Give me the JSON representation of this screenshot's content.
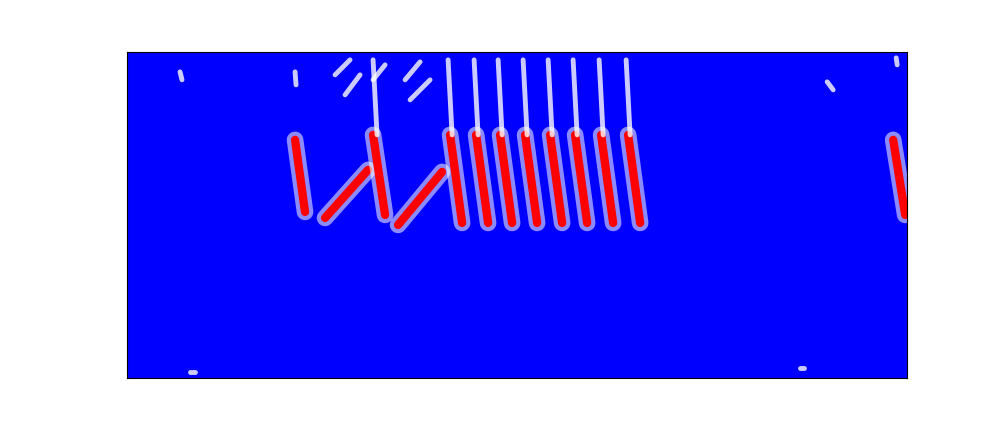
{
  "chart_data": {
    "type": "spectrogram",
    "xlim": [
      0,
      780
    ],
    "ylim": [
      0,
      326
    ],
    "tick_labels": false,
    "clim": [
      0,
      1
    ],
    "background": 0,
    "strokes": [
      {
        "t": [
          168,
          178
        ],
        "f": [
          238,
          166
        ],
        "intensity": 1.0
      },
      {
        "t": [
          198,
          241
        ],
        "f": [
          160,
          208
        ],
        "intensity": 1.0
      },
      {
        "t": [
          246,
          258
        ],
        "f": [
          243,
          163
        ],
        "intensity": 1.0
      },
      {
        "t": [
          271,
          315
        ],
        "f": [
          153,
          206
        ],
        "intensity": 1.0
      },
      {
        "t": [
          323,
          335
        ],
        "f": [
          243,
          155
        ],
        "intensity": 1.0
      },
      {
        "t": [
          349,
          361
        ],
        "f": [
          243,
          155
        ],
        "intensity": 1.0
      },
      {
        "t": [
          373,
          385
        ],
        "f": [
          243,
          155
        ],
        "intensity": 1.0
      },
      {
        "t": [
          398,
          410
        ],
        "f": [
          243,
          155
        ],
        "intensity": 1.0
      },
      {
        "t": [
          423,
          435
        ],
        "f": [
          243,
          155
        ],
        "intensity": 1.0
      },
      {
        "t": [
          448,
          460
        ],
        "f": [
          243,
          155
        ],
        "intensity": 1.0
      },
      {
        "t": [
          474,
          486
        ],
        "f": [
          243,
          155
        ],
        "intensity": 1.0
      },
      {
        "t": [
          501,
          513
        ],
        "f": [
          243,
          155
        ],
        "intensity": 1.0
      },
      {
        "t": [
          766,
          778
        ],
        "f": [
          238,
          163
        ],
        "intensity": 1.0
      },
      {
        "t": [
          246,
          250
        ],
        "f": [
          318,
          243
        ],
        "intensity": 0.6
      },
      {
        "t": [
          321,
          325
        ],
        "f": [
          318,
          243
        ],
        "intensity": 0.6
      },
      {
        "t": [
          347,
          351
        ],
        "f": [
          318,
          243
        ],
        "intensity": 0.6
      },
      {
        "t": [
          371,
          375
        ],
        "f": [
          318,
          243
        ],
        "intensity": 0.6
      },
      {
        "t": [
          396,
          400
        ],
        "f": [
          318,
          243
        ],
        "intensity": 0.6
      },
      {
        "t": [
          421,
          425
        ],
        "f": [
          318,
          243
        ],
        "intensity": 0.6
      },
      {
        "t": [
          446,
          450
        ],
        "f": [
          318,
          243
        ],
        "intensity": 0.6
      },
      {
        "t": [
          472,
          476
        ],
        "f": [
          318,
          243
        ],
        "intensity": 0.6
      },
      {
        "t": [
          499,
          503
        ],
        "f": [
          318,
          243
        ],
        "intensity": 0.6
      },
      {
        "t": [
          208,
          223
        ],
        "f": [
          303,
          318
        ],
        "intensity": 0.6
      },
      {
        "t": [
          218,
          233
        ],
        "f": [
          283,
          303
        ],
        "intensity": 0.6
      },
      {
        "t": [
          246,
          258
        ],
        "f": [
          298,
          313
        ],
        "intensity": 0.6
      },
      {
        "t": [
          278,
          293
        ],
        "f": [
          298,
          316
        ],
        "intensity": 0.6
      },
      {
        "t": [
          283,
          303
        ],
        "f": [
          278,
          298
        ],
        "intensity": 0.6
      },
      {
        "t": [
          53,
          55
        ],
        "f": [
          306,
          298
        ],
        "intensity": 0.5
      },
      {
        "t": [
          168,
          169
        ],
        "f": [
          306,
          293
        ],
        "intensity": 0.5
      },
      {
        "t": [
          700,
          706
        ],
        "f": [
          296,
          288
        ],
        "intensity": 0.5
      },
      {
        "t": [
          769,
          770
        ],
        "f": [
          320,
          313
        ],
        "intensity": 0.5
      },
      {
        "t": [
          63,
          68
        ],
        "f": [
          6,
          6
        ],
        "intensity": 0.5
      },
      {
        "t": [
          673,
          677
        ],
        "f": [
          10,
          10
        ],
        "intensity": 0.5
      }
    ]
  }
}
